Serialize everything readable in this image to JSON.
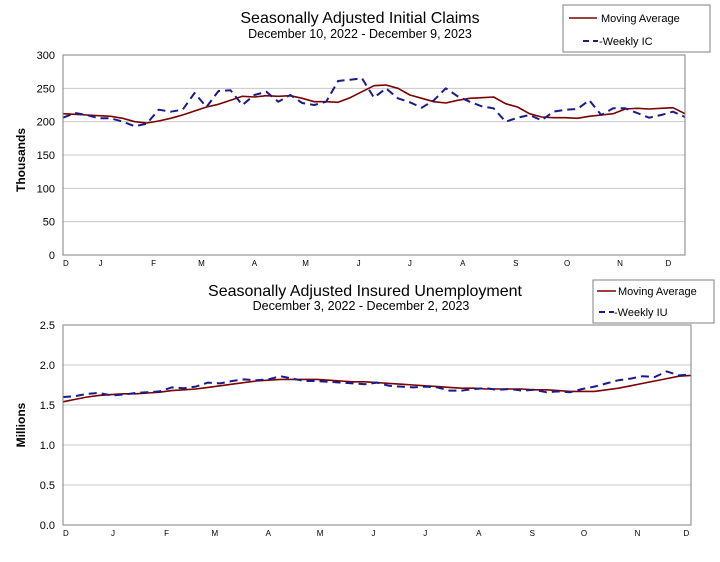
{
  "chart_data": [
    {
      "type": "line",
      "title": "Seasonally Adjusted Initial Claims",
      "subtitle": "December 10, 2022 - December 9, 2023",
      "xlabel": "",
      "ylabel": "Thousands",
      "ylim": [
        0,
        300
      ],
      "yticks": [
        "0",
        "50",
        "100",
        "150",
        "200",
        "250",
        "300"
      ],
      "month_labels": [
        "D",
        "J",
        "F",
        "M",
        "A",
        "M",
        "J",
        "J",
        "A",
        "S",
        "O",
        "N",
        "D"
      ],
      "grid": true,
      "legend_position": "top-right",
      "legend": [
        "Moving Average",
        "-Weekly IC"
      ],
      "x": [
        "2022-12-10",
        "2022-12-17",
        "2022-12-24",
        "2022-12-31",
        "2023-01-07",
        "2023-01-14",
        "2023-01-21",
        "2023-01-28",
        "2023-02-04",
        "2023-02-11",
        "2023-02-18",
        "2023-02-25",
        "2023-03-04",
        "2023-03-11",
        "2023-03-18",
        "2023-03-25",
        "2023-04-01",
        "2023-04-08",
        "2023-04-15",
        "2023-04-22",
        "2023-04-29",
        "2023-05-06",
        "2023-05-13",
        "2023-05-20",
        "2023-05-27",
        "2023-06-03",
        "2023-06-10",
        "2023-06-17",
        "2023-06-24",
        "2023-07-01",
        "2023-07-08",
        "2023-07-15",
        "2023-07-22",
        "2023-07-29",
        "2023-08-05",
        "2023-08-12",
        "2023-08-19",
        "2023-08-26",
        "2023-09-02",
        "2023-09-09",
        "2023-09-16",
        "2023-09-23",
        "2023-09-30",
        "2023-10-07",
        "2023-10-14",
        "2023-10-21",
        "2023-10-28",
        "2023-11-04",
        "2023-11-11",
        "2023-11-18",
        "2023-11-25",
        "2023-12-02",
        "2023-12-09"
      ],
      "series": [
        {
          "name": "Moving Average",
          "color": "#7b0000",
          "dash": "solid",
          "values": [
            212,
            211,
            210,
            209,
            208,
            205,
            200,
            198,
            201,
            205,
            210,
            216,
            222,
            226,
            232,
            238,
            237,
            239,
            238,
            239,
            235,
            230,
            230,
            229,
            236,
            245,
            254,
            255,
            250,
            240,
            235,
            230,
            228,
            232,
            235,
            236,
            237,
            227,
            222,
            212,
            207,
            206,
            206,
            205,
            208,
            210,
            212,
            219,
            220,
            219,
            220,
            221,
            212
          ]
        },
        {
          "name": "-Weekly IC",
          "color": "#1a1a8c",
          "dash": "dashed",
          "values": [
            206,
            213,
            210,
            205,
            205,
            200,
            193,
            197,
            218,
            215,
            218,
            243,
            222,
            246,
            247,
            225,
            240,
            245,
            230,
            240,
            228,
            225,
            230,
            261,
            263,
            265,
            236,
            250,
            235,
            229,
            221,
            232,
            250,
            238,
            230,
            223,
            220,
            200,
            206,
            210,
            202,
            215,
            218,
            219,
            232,
            210,
            220,
            220,
            213,
            206,
            210,
            215,
            207
          ]
        }
      ]
    },
    {
      "type": "line",
      "title": "Seasonally Adjusted Insured Unemployment",
      "subtitle": "December 3, 2022 - December 2, 2023",
      "xlabel": "",
      "ylabel": "Millions",
      "ylim": [
        0,
        2.5
      ],
      "yticks": [
        "0.0",
        "0.5",
        "1.0",
        "1.5",
        "2.0",
        "2.5"
      ],
      "month_labels": [
        "D",
        "J",
        "F",
        "M",
        "A",
        "M",
        "J",
        "J",
        "A",
        "S",
        "O",
        "N",
        "D"
      ],
      "grid": true,
      "legend_position": "top-right",
      "legend": [
        "Moving Average",
        "-Weekly IU"
      ],
      "x": [
        "2022-12-03",
        "2022-12-10",
        "2022-12-17",
        "2022-12-24",
        "2022-12-31",
        "2023-01-07",
        "2023-01-14",
        "2023-01-21",
        "2023-01-28",
        "2023-02-04",
        "2023-02-11",
        "2023-02-18",
        "2023-02-25",
        "2023-03-04",
        "2023-03-11",
        "2023-03-18",
        "2023-03-25",
        "2023-04-01",
        "2023-04-08",
        "2023-04-15",
        "2023-04-22",
        "2023-04-29",
        "2023-05-06",
        "2023-05-13",
        "2023-05-20",
        "2023-05-27",
        "2023-06-03",
        "2023-06-10",
        "2023-06-17",
        "2023-06-24",
        "2023-07-01",
        "2023-07-08",
        "2023-07-15",
        "2023-07-22",
        "2023-07-29",
        "2023-08-05",
        "2023-08-12",
        "2023-08-19",
        "2023-08-26",
        "2023-09-02",
        "2023-09-09",
        "2023-09-16",
        "2023-09-23",
        "2023-09-30",
        "2023-10-07",
        "2023-10-14",
        "2023-10-21",
        "2023-10-28",
        "2023-11-04",
        "2023-11-11",
        "2023-11-18",
        "2023-11-25",
        "2023-12-02"
      ],
      "series": [
        {
          "name": "Moving Average",
          "color": "#7b0000",
          "dash": "solid",
          "values": [
            1.54,
            1.57,
            1.6,
            1.62,
            1.63,
            1.64,
            1.64,
            1.65,
            1.66,
            1.68,
            1.69,
            1.7,
            1.72,
            1.74,
            1.76,
            1.78,
            1.8,
            1.81,
            1.82,
            1.82,
            1.82,
            1.82,
            1.81,
            1.8,
            1.79,
            1.79,
            1.78,
            1.77,
            1.76,
            1.75,
            1.74,
            1.73,
            1.72,
            1.71,
            1.71,
            1.7,
            1.7,
            1.7,
            1.7,
            1.69,
            1.69,
            1.68,
            1.67,
            1.67,
            1.67,
            1.69,
            1.71,
            1.74,
            1.77,
            1.8,
            1.83,
            1.86,
            1.87
          ]
        },
        {
          "name": "-Weekly IU",
          "color": "#1a1a8c",
          "dash": "dashed",
          "values": [
            1.6,
            1.61,
            1.64,
            1.65,
            1.62,
            1.63,
            1.65,
            1.66,
            1.67,
            1.72,
            1.71,
            1.73,
            1.78,
            1.77,
            1.8,
            1.82,
            1.81,
            1.82,
            1.86,
            1.83,
            1.8,
            1.8,
            1.79,
            1.78,
            1.77,
            1.76,
            1.78,
            1.74,
            1.73,
            1.72,
            1.73,
            1.72,
            1.68,
            1.68,
            1.7,
            1.71,
            1.69,
            1.7,
            1.68,
            1.69,
            1.66,
            1.67,
            1.66,
            1.7,
            1.73,
            1.77,
            1.81,
            1.83,
            1.86,
            1.85,
            1.92,
            1.87,
            1.88
          ]
        }
      ]
    }
  ]
}
